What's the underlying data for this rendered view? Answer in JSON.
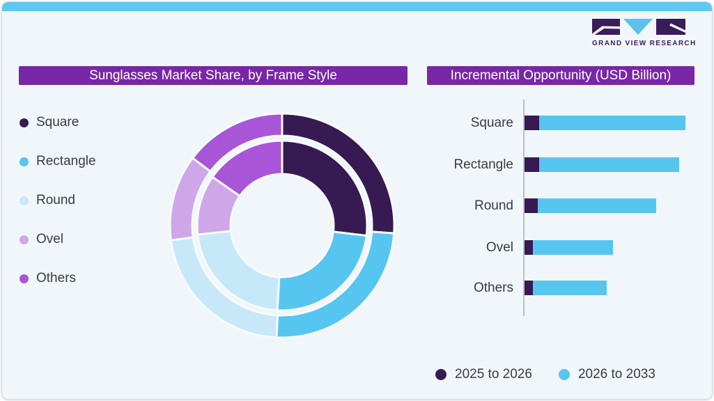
{
  "page": {
    "background": "#f1f6fa",
    "topbar_color": "#5dc8f2",
    "border_color": "#d3dbe2"
  },
  "logo": {
    "name": "Grand View Research",
    "text": "GRAND VIEW RESEARCH",
    "block_dark_color": "#3a1c58",
    "block_blue_color": "#5bc2ee"
  },
  "colors": {
    "title_bar_bg": "#7827a6",
    "title_bar_text": "#ffffff",
    "label_text": "#3a3a44",
    "axis_line": "#b9c0c7",
    "square": "#371a52",
    "rectangle": "#56c6f0",
    "round": "#c7e8f8",
    "ovel": "#cfa7e9",
    "others": "#a855d8"
  },
  "left_panel": {
    "title": "Sunglasses Market Share, by Frame Style"
  },
  "right_panel": {
    "title": "Incremental Opportunity (USD Billion)"
  },
  "chart_data": [
    {
      "type": "pie",
      "variant": "double_ring_donut",
      "title": "Sunglasses Market Share, by Frame Style",
      "categories": [
        "Square",
        "Rectangle",
        "Round",
        "Ovel",
        "Others"
      ],
      "colors": [
        "#371a52",
        "#56c6f0",
        "#c7e8f8",
        "#cfa7e9",
        "#a855d8"
      ],
      "series": [
        {
          "name": "outer_ring",
          "values": [
            26.1,
            24.7,
            22.1,
            12.4,
            14.7
          ]
        },
        {
          "name": "inner_ring",
          "values": [
            26.9,
            24.0,
            22.4,
            11.4,
            15.3
          ]
        }
      ],
      "unit": "percent (estimated from arc angles; no numeric labels shown)",
      "start_angle": "top, clockwise",
      "legend_position": "left",
      "data_labels": false
    },
    {
      "type": "bar",
      "orientation": "horizontal",
      "stacked": true,
      "title": "Incremental Opportunity (USD Billion)",
      "categories": [
        "Square",
        "Rectangle",
        "Round",
        "Ovel",
        "Others"
      ],
      "series": [
        {
          "name": "2025 to 2026",
          "color": "#371a52",
          "values": [
            9,
            9,
            8,
            5,
            5
          ]
        },
        {
          "name": "2026 to 2033",
          "color": "#56c6f0",
          "values": [
            91,
            87,
            74,
            50,
            46
          ]
        }
      ],
      "value_scale": "relative bar length, max total = 100 (no numeric axis labels shown)",
      "grid": false,
      "legend_position": "bottom"
    }
  ]
}
